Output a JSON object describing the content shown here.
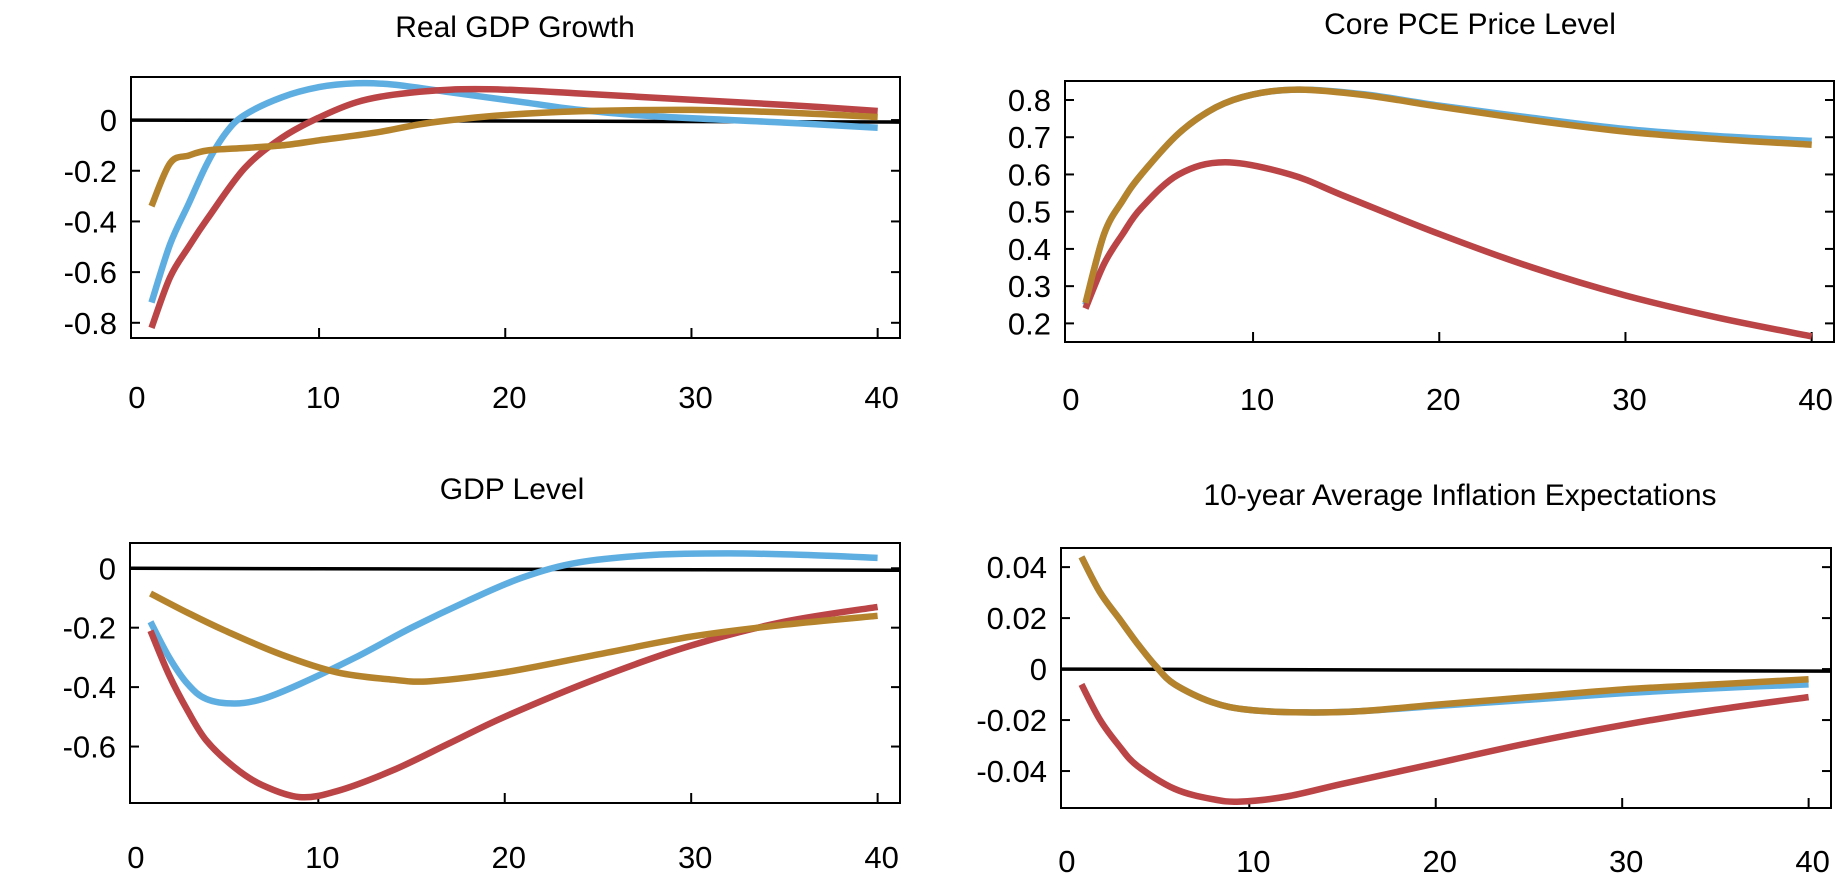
{
  "colors": {
    "blue": "#5FAEE2",
    "red": "#BA4446",
    "gold": "#B5832B",
    "axis": "#000000"
  },
  "chart_data": [
    {
      "type": "line",
      "title": "Real GDP Growth",
      "xlim": [
        -0.1,
        41.2
      ],
      "ylim": [
        -0.86,
        0.17
      ],
      "xticks": [
        0,
        10,
        20,
        30,
        40
      ],
      "yticks": [
        0,
        -0.2,
        -0.4,
        -0.6,
        -0.8
      ],
      "ytick_labels": [
        "0",
        "-0.2",
        "-0.4",
        "-0.6",
        "-0.8"
      ],
      "zero_line": true,
      "grid": false,
      "series": [
        {
          "color": "blue",
          "x": [
            1,
            2,
            3,
            4,
            5,
            6,
            8,
            10,
            12,
            14,
            17,
            21,
            24,
            28,
            35,
            40
          ],
          "y": [
            -0.72,
            -0.49,
            -0.33,
            -0.17,
            -0.05,
            0.02,
            0.09,
            0.13,
            0.145,
            0.14,
            0.11,
            0.07,
            0.04,
            0.015,
            -0.01,
            -0.03
          ]
        },
        {
          "color": "red",
          "x": [
            1,
            2,
            3,
            4,
            6,
            8,
            10,
            12,
            14,
            17,
            20,
            24,
            30,
            35,
            40
          ],
          "y": [
            -0.82,
            -0.62,
            -0.5,
            -0.39,
            -0.19,
            -0.07,
            0.01,
            0.07,
            0.1,
            0.12,
            0.12,
            0.105,
            0.08,
            0.06,
            0.036
          ]
        },
        {
          "color": "gold",
          "x": [
            1,
            2,
            3,
            4,
            6,
            8,
            10,
            13,
            16,
            20,
            24,
            30,
            35,
            40
          ],
          "y": [
            -0.34,
            -0.17,
            -0.14,
            -0.12,
            -0.11,
            -0.1,
            -0.08,
            -0.05,
            -0.01,
            0.02,
            0.035,
            0.04,
            0.03,
            0.012
          ]
        }
      ]
    },
    {
      "type": "line",
      "title": "Core PCE Price Level",
      "xlim": [
        -0.1,
        41.2
      ],
      "ylim": [
        0.15,
        0.851
      ],
      "xticks": [
        0,
        10,
        20,
        30,
        40
      ],
      "yticks": [
        0.8,
        0.7,
        0.6,
        0.5,
        0.4,
        0.3,
        0.2
      ],
      "ytick_labels": [
        "0.8",
        "0.7",
        "0.6",
        "0.5",
        "0.4",
        "0.3",
        "0.2"
      ],
      "zero_line": false,
      "grid": false,
      "series": [
        {
          "color": "blue",
          "x": [
            1,
            2,
            3,
            4,
            6,
            8,
            10,
            12.5,
            16,
            20,
            25,
            30,
            35,
            40
          ],
          "y": [
            0.25,
            0.44,
            0.53,
            0.6,
            0.71,
            0.78,
            0.815,
            0.828,
            0.815,
            0.785,
            0.752,
            0.722,
            0.703,
            0.69
          ]
        },
        {
          "color": "red",
          "x": [
            1,
            2,
            3,
            4,
            6,
            8.5,
            12,
            15,
            20,
            25,
            30,
            35,
            40
          ],
          "y": [
            0.24,
            0.36,
            0.44,
            0.51,
            0.6,
            0.633,
            0.6,
            0.54,
            0.44,
            0.35,
            0.275,
            0.215,
            0.165
          ]
        },
        {
          "color": "gold",
          "x": [
            1,
            2,
            3,
            4,
            6,
            8,
            10,
            12.5,
            16,
            20,
            25,
            30,
            35,
            40
          ],
          "y": [
            0.255,
            0.44,
            0.53,
            0.6,
            0.71,
            0.78,
            0.815,
            0.828,
            0.813,
            0.782,
            0.746,
            0.715,
            0.695,
            0.68
          ]
        }
      ]
    },
    {
      "type": "line",
      "title": "GDP Level",
      "xlim": [
        -0.1,
        41.2
      ],
      "ylim": [
        -0.79,
        0.085
      ],
      "xticks": [
        0,
        10,
        20,
        30,
        40
      ],
      "yticks": [
        0,
        -0.2,
        -0.4,
        -0.6
      ],
      "ytick_labels": [
        "0",
        "-0.2",
        "-0.4",
        "-0.6"
      ],
      "zero_line": true,
      "grid": false,
      "series": [
        {
          "color": "blue",
          "x": [
            1,
            2,
            3,
            4,
            5.5,
            7,
            9,
            12,
            15,
            18,
            21,
            24,
            28,
            32,
            36,
            40
          ],
          "y": [
            -0.18,
            -0.3,
            -0.39,
            -0.44,
            -0.455,
            -0.44,
            -0.39,
            -0.3,
            -0.2,
            -0.11,
            -0.03,
            0.02,
            0.045,
            0.05,
            0.045,
            0.035
          ]
        },
        {
          "color": "red",
          "x": [
            1,
            2,
            3,
            4,
            5.5,
            7,
            9,
            11,
            14,
            17,
            20,
            25,
            30,
            35,
            40
          ],
          "y": [
            -0.21,
            -0.36,
            -0.48,
            -0.58,
            -0.67,
            -0.73,
            -0.77,
            -0.75,
            -0.68,
            -0.59,
            -0.5,
            -0.37,
            -0.26,
            -0.18,
            -0.13
          ]
        },
        {
          "color": "gold",
          "x": [
            1,
            3,
            5,
            8,
            11,
            14,
            16,
            20,
            25,
            30,
            35,
            40
          ],
          "y": [
            -0.085,
            -0.15,
            -0.21,
            -0.29,
            -0.35,
            -0.375,
            -0.38,
            -0.35,
            -0.29,
            -0.23,
            -0.19,
            -0.16
          ]
        }
      ]
    },
    {
      "type": "line",
      "title": "10-year Average Inflation Expectations",
      "xlim": [
        -0.1,
        41.2
      ],
      "ylim": [
        -0.0545,
        0.0475
      ],
      "xticks": [
        0,
        10,
        20,
        30,
        40
      ],
      "yticks": [
        0.04,
        0.02,
        0,
        -0.02,
        -0.04
      ],
      "ytick_labels": [
        "0.04",
        "0.02",
        "0",
        "-0.02",
        "-0.04"
      ],
      "zero_line": true,
      "grid": false,
      "series": [
        {
          "color": "blue",
          "x": [
            1,
            2,
            3,
            4,
            5,
            6,
            8,
            10,
            13,
            16,
            20,
            25,
            30,
            35,
            40
          ],
          "y": [
            0.044,
            0.03,
            0.02,
            0.01,
            0.001,
            -0.006,
            -0.013,
            -0.016,
            -0.017,
            -0.0165,
            -0.0145,
            -0.012,
            -0.0095,
            -0.0075,
            -0.006
          ]
        },
        {
          "color": "red",
          "x": [
            1,
            2,
            3,
            4,
            6,
            8,
            9.5,
            12,
            15,
            20,
            25,
            30,
            35,
            40
          ],
          "y": [
            -0.006,
            -0.02,
            -0.03,
            -0.038,
            -0.047,
            -0.051,
            -0.052,
            -0.05,
            -0.045,
            -0.037,
            -0.029,
            -0.022,
            -0.016,
            -0.011
          ]
        },
        {
          "color": "gold",
          "x": [
            1,
            2,
            3,
            4,
            5,
            6,
            8,
            10,
            13,
            16,
            20,
            25,
            30,
            35,
            40
          ],
          "y": [
            0.044,
            0.03,
            0.02,
            0.01,
            0.001,
            -0.006,
            -0.013,
            -0.016,
            -0.017,
            -0.0165,
            -0.014,
            -0.011,
            -0.008,
            -0.006,
            -0.004
          ]
        }
      ]
    }
  ]
}
